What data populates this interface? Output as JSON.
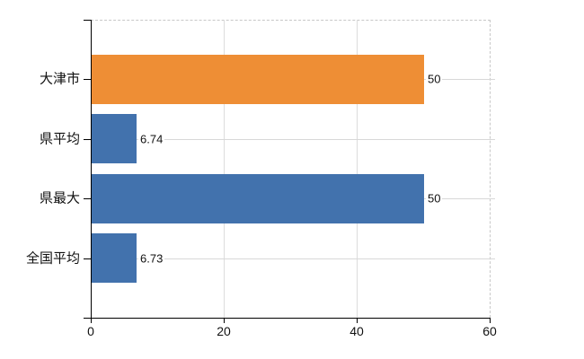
{
  "chart_data": {
    "type": "bar",
    "orientation": "horizontal",
    "title": "",
    "xlabel": "",
    "ylabel": "",
    "categories": [
      "大津市",
      "県平均",
      "県最大",
      "全国平均"
    ],
    "values": [
      50,
      6.74,
      50,
      6.73
    ],
    "value_labels": [
      "50",
      "6.74",
      "50",
      "6.73"
    ],
    "bar_colors": [
      "#ee8e35",
      "#4272ad",
      "#4272ad",
      "#4272ad"
    ],
    "xlim": [
      0,
      60
    ],
    "xticks": [
      0,
      20,
      40,
      60
    ],
    "xtick_labels": [
      "0",
      "20",
      "40",
      "60"
    ],
    "grid": true,
    "legend": "none"
  },
  "colors": {
    "background": "#ffffff",
    "axis": "#000000",
    "grid": "#d8d8d8",
    "dashed_border": "#c8c8c8",
    "text": "#111111",
    "highlight_bar": "#ee8e35",
    "default_bar": "#4272ad"
  }
}
